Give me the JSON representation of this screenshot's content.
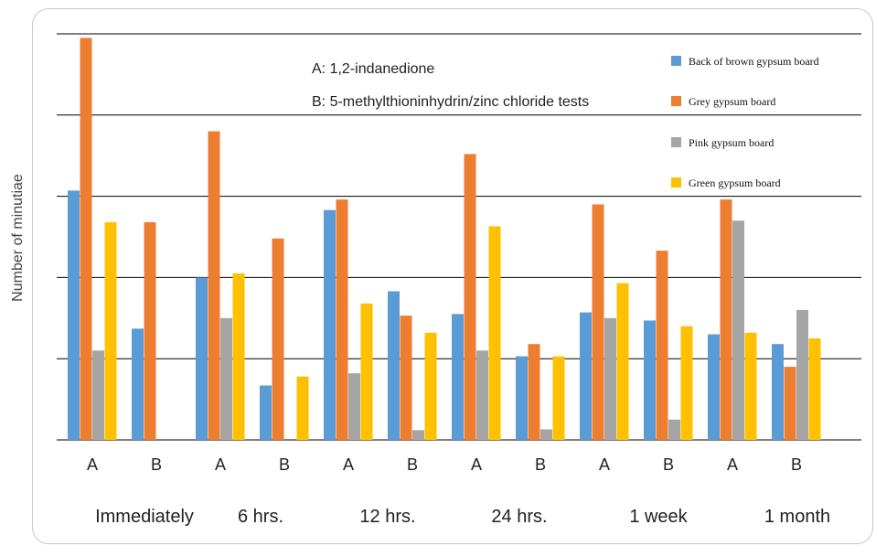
{
  "chart_data": {
    "type": "bar",
    "title": "",
    "xlabel": "",
    "ylabel": "Number of minutiae",
    "ylim": [
      0,
      5
    ],
    "grid": true,
    "legend_position": "top-right",
    "categories": [
      "A",
      "B",
      "A",
      "B",
      "A",
      "B",
      "A",
      "B",
      "A",
      "B",
      "A",
      "B"
    ],
    "groups": [
      {
        "label": "Immediately"
      },
      {
        "label": "6 hrs."
      },
      {
        "label": "12 hrs."
      },
      {
        "label": "24 hrs."
      },
      {
        "label": "1 week"
      },
      {
        "label": "1 month"
      }
    ],
    "annotations": [
      "A: 1,2-indanedione",
      "B:  5-methylthioninhydrin/zinc chloride tests"
    ],
    "series": [
      {
        "name": "Back of brown gypsum board",
        "color": "#5b9bd5",
        "values": [
          3.07,
          1.37,
          2.0,
          0.67,
          2.83,
          1.83,
          1.55,
          1.03,
          1.57,
          1.47,
          1.3,
          1.18
        ]
      },
      {
        "name": "Grey gypsum board",
        "color": "#ed7d31",
        "values": [
          4.95,
          2.68,
          3.8,
          2.48,
          2.96,
          1.53,
          3.52,
          1.18,
          2.9,
          2.33,
          2.96,
          0.9
        ]
      },
      {
        "name": "Pink gypsum board",
        "color": "#a5a5a5",
        "values": [
          1.1,
          0,
          1.5,
          0,
          0.82,
          0.12,
          1.1,
          0.13,
          1.5,
          0.25,
          2.7,
          1.6
        ]
      },
      {
        "name": "Green gypsum board",
        "color": "#ffc000",
        "values": [
          2.68,
          0,
          2.05,
          0.78,
          1.68,
          1.32,
          2.63,
          1.03,
          1.93,
          1.4,
          1.32,
          1.25
        ]
      }
    ]
  }
}
